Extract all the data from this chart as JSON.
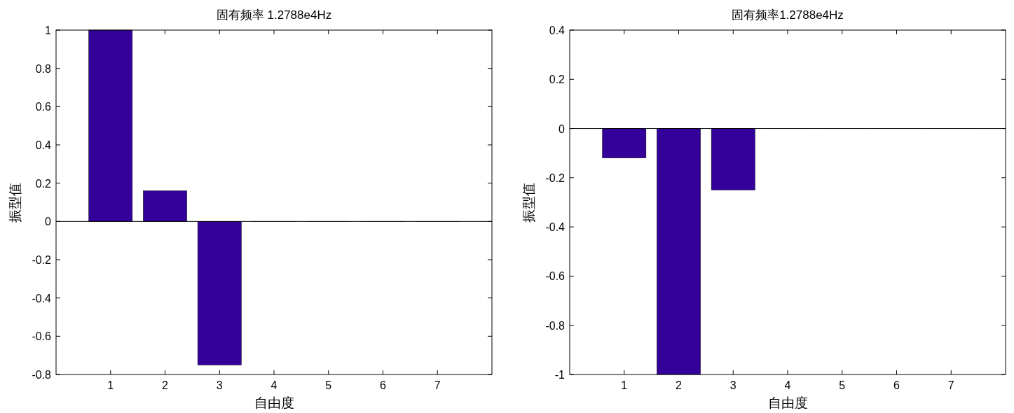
{
  "chart_data": [
    {
      "type": "bar",
      "title": "固有频率 1.2788e4Hz",
      "xlabel": "自由度",
      "ylabel": "振型值",
      "categories": [
        "1",
        "2",
        "3",
        "4",
        "5",
        "6",
        "7"
      ],
      "values": [
        1,
        0.16,
        -0.75,
        0,
        0,
        0,
        0
      ],
      "color": "#330099",
      "ylim": [
        -0.8,
        1
      ],
      "yticks": [
        -0.8,
        -0.6,
        -0.4,
        -0.2,
        0,
        0.2,
        0.4,
        0.6,
        0.8,
        1
      ],
      "legend": false
    },
    {
      "type": "bar",
      "title": "固有频率1.2788e4Hz",
      "xlabel": "自由度",
      "ylabel": "振型值",
      "categories": [
        "1",
        "2",
        "3",
        "4",
        "5",
        "6",
        "7"
      ],
      "values": [
        -0.12,
        -1,
        -0.25,
        0,
        0,
        0,
        0
      ],
      "color": "#330099",
      "ylim": [
        -1,
        0.4
      ],
      "yticks": [
        -1,
        -0.8,
        -0.6,
        -0.4,
        -0.2,
        0,
        0.2,
        0.4
      ],
      "legend": false
    }
  ]
}
